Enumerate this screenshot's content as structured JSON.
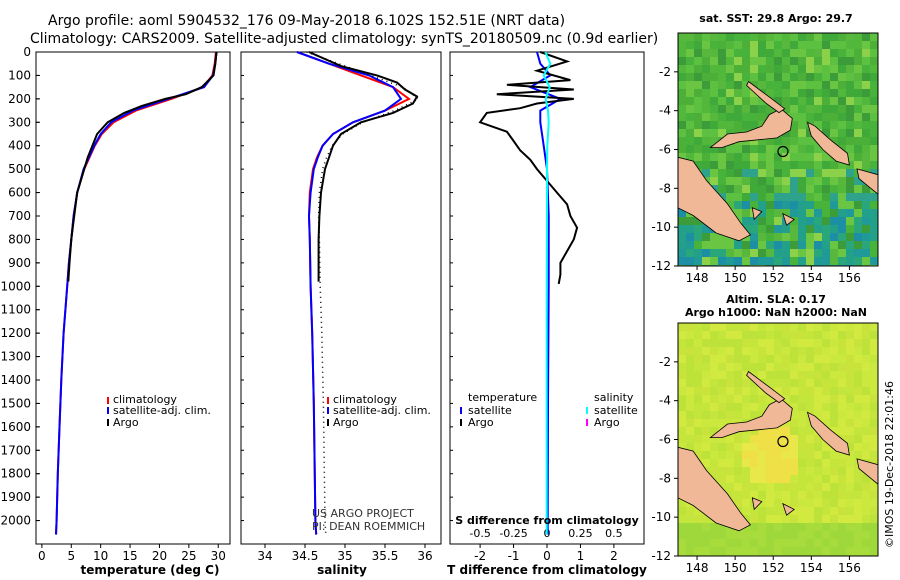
{
  "title_line1": "Argo profile: aoml 5904532_176 09-May-2018 6.102S 152.51E (NRT data)",
  "title_line2": "Climatology: CARS2009. Satellite-adjusted climatology: synTS_20180509.nc (0.9d earlier)",
  "depth_ticks": [
    "0",
    "100",
    "200",
    "300",
    "400",
    "500",
    "600",
    "700",
    "800",
    "900",
    "1000",
    "1100",
    "1200",
    "1300",
    "1400",
    "1500",
    "1600",
    "1700",
    "1800",
    "1900",
    "2000"
  ],
  "colors": {
    "climatology": "#ff0000",
    "satellite": "#0000ff",
    "argo": "#000000",
    "sal_satellite": "#00ffff",
    "sal_argo": "#ff00ff",
    "land": "#f0b896"
  },
  "chart_data": [
    {
      "type": "line",
      "name": "temperature_panel",
      "xlabel": "temperature (deg C)",
      "ylabel": "depth",
      "xlim": [
        -1,
        32
      ],
      "ylim": [
        2100,
        0
      ],
      "xticks": [
        "0",
        "5",
        "10",
        "15",
        "20",
        "25",
        "30"
      ],
      "legend": [
        "climatology",
        "satellite-adj. clim.",
        "Argo"
      ],
      "series": [
        {
          "name": "climatology",
          "depth": [
            0,
            50,
            100,
            150,
            200,
            250,
            300,
            350,
            400,
            500,
            600,
            700,
            800,
            900,
            1000,
            1200,
            1400,
            1600,
            1800,
            2000,
            2060
          ],
          "values": [
            29.6,
            29.4,
            29.0,
            27.4,
            22.0,
            16.0,
            12.2,
            10.2,
            9.0,
            7.2,
            6.0,
            5.4,
            5.0,
            4.6,
            4.3,
            3.7,
            3.3,
            3.0,
            2.7,
            2.5,
            2.4
          ]
        },
        {
          "name": "satellite-adj. clim.",
          "depth": [
            0,
            50,
            100,
            150,
            200,
            250,
            300,
            350,
            400,
            500,
            600,
            700,
            800,
            900,
            1000,
            1200,
            1400,
            1600,
            1800,
            2000,
            2060
          ],
          "values": [
            29.7,
            29.5,
            29.1,
            27.6,
            21.5,
            15.5,
            11.8,
            10.0,
            8.9,
            7.1,
            6.0,
            5.4,
            5.0,
            4.6,
            4.3,
            3.7,
            3.3,
            3.0,
            2.7,
            2.5,
            2.4
          ]
        },
        {
          "name": "Argo",
          "depth": [
            0,
            50,
            100,
            150,
            180,
            200,
            230,
            260,
            300,
            350,
            400,
            450,
            500,
            600,
            700,
            800,
            900,
            980
          ],
          "values": [
            29.7,
            29.5,
            29.2,
            27.2,
            24.5,
            21.0,
            17.0,
            14.0,
            11.2,
            9.4,
            8.6,
            7.8,
            7.2,
            6.0,
            5.5,
            5.0,
            4.7,
            4.5
          ]
        }
      ]
    },
    {
      "type": "line",
      "name": "salinity_panel",
      "xlabel": "salinity",
      "xlim": [
        33.7,
        36.2
      ],
      "ylim": [
        2100,
        0
      ],
      "xticks": [
        "34",
        "34.5",
        "35",
        "35.5",
        "36"
      ],
      "legend": [
        "climatology",
        "satellite-adj. clim.",
        "Argo"
      ],
      "annotation": [
        "US ARGO PROJECT",
        "PI: DEAN ROEMMICH"
      ],
      "series": [
        {
          "name": "climatology",
          "depth": [
            0,
            50,
            100,
            150,
            200,
            250,
            300,
            350,
            400,
            450,
            500,
            600,
            700,
            800,
            1000,
            1200,
            1500,
            2000,
            2060
          ],
          "values": [
            34.4,
            34.8,
            35.2,
            35.6,
            35.8,
            35.5,
            35.1,
            34.85,
            34.72,
            34.65,
            34.6,
            34.56,
            34.55,
            34.56,
            34.57,
            34.59,
            34.61,
            34.63,
            34.64
          ]
        },
        {
          "name": "satellite-adj. clim.",
          "depth": [
            0,
            50,
            100,
            150,
            200,
            250,
            300,
            350,
            400,
            450,
            500,
            600,
            700,
            800,
            1000,
            1200,
            1500,
            2000,
            2060
          ],
          "values": [
            34.4,
            34.8,
            35.3,
            35.6,
            35.7,
            35.5,
            35.1,
            34.85,
            34.72,
            34.66,
            34.61,
            34.57,
            34.55,
            34.56,
            34.57,
            34.59,
            34.61,
            34.63,
            34.64
          ]
        },
        {
          "name": "Argo",
          "depth": [
            0,
            60,
            100,
            130,
            160,
            190,
            220,
            260,
            300,
            350,
            400,
            450,
            500,
            600,
            700,
            800,
            900,
            980
          ],
          "values": [
            34.55,
            34.95,
            35.4,
            35.65,
            35.75,
            35.9,
            35.85,
            35.6,
            35.2,
            34.95,
            34.85,
            34.8,
            34.75,
            34.7,
            34.68,
            34.67,
            34.67,
            34.67
          ]
        }
      ]
    },
    {
      "type": "line",
      "name": "difference_panel",
      "xlabel": "T difference from climatology",
      "top_label": "S difference from climatology",
      "xlim": [
        -2.9,
        2.9
      ],
      "ylim": [
        2100,
        0
      ],
      "xticks": [
        "-2",
        "-1",
        "0",
        "1",
        "2"
      ],
      "sticks": [
        "-0.5",
        "-0.25",
        "0",
        "0.25",
        "0.5"
      ],
      "legend_left": [
        "temperature",
        "satellite",
        "Argo"
      ],
      "legend_right": [
        "salinity",
        "satellite",
        "Argo"
      ],
      "series": [
        {
          "name": "T satellite",
          "depth": [
            0,
            50,
            100,
            150,
            200,
            250,
            300,
            400,
            500,
            700,
            1000,
            1500,
            2000,
            2060
          ],
          "values": [
            -0.3,
            -0.2,
            0.1,
            -0.5,
            0.4,
            -0.2,
            -0.2,
            -0.1,
            0.0,
            0.05,
            0.05,
            0.03,
            0.02,
            0.02
          ]
        },
        {
          "name": "T Argo",
          "depth": [
            0,
            40,
            80,
            120,
            140,
            160,
            180,
            200,
            220,
            240,
            260,
            300,
            340,
            380,
            420,
            460,
            500,
            550,
            600,
            650,
            700,
            750,
            800,
            850,
            900,
            950,
            990
          ],
          "values": [
            -0.2,
            0.6,
            -0.3,
            0.7,
            -1.2,
            0.8,
            -1.5,
            0.8,
            -0.3,
            -0.8,
            -1.8,
            -2.0,
            -1.2,
            -1.0,
            -0.8,
            -0.5,
            -0.3,
            0.0,
            0.3,
            0.6,
            0.7,
            0.9,
            0.8,
            0.6,
            0.4,
            0.4,
            0.35
          ]
        },
        {
          "name": "S satellite",
          "depth": [
            0,
            50,
            100,
            150,
            200,
            250,
            300,
            400,
            500,
            700,
            1000,
            1500,
            2000,
            2060
          ],
          "values": [
            -0.05,
            0.1,
            -0.1,
            0.08,
            -0.04,
            0.03,
            0.05,
            0.01,
            0.0,
            0.0,
            -0.01,
            -0.01,
            -0.01,
            -0.01
          ]
        }
      ]
    },
    {
      "type": "heatmap",
      "name": "sst_map",
      "title": "sat. SST: 29.8 Argo: 29.7",
      "xticks": [
        "148",
        "150",
        "152",
        "154",
        "156"
      ],
      "yticks": [
        "-2",
        "-4",
        "-6",
        "-8",
        "-10",
        "-12"
      ],
      "xlim": [
        147,
        157.5
      ],
      "ylim": [
        -12,
        0
      ]
    },
    {
      "type": "heatmap",
      "name": "sla_map",
      "title_line1": "Altim. SLA: 0.17",
      "title_line2": "Argo h1000: NaN h2000: NaN",
      "xticks": [
        "148",
        "150",
        "152",
        "154",
        "156"
      ],
      "yticks": [
        "-2",
        "-4",
        "-6",
        "-8",
        "-10",
        "-12"
      ],
      "xlim": [
        147,
        157.5
      ],
      "ylim": [
        -12,
        0
      ]
    }
  ],
  "watermark": "©IMOS 19-Dec-2018 22:01:46"
}
